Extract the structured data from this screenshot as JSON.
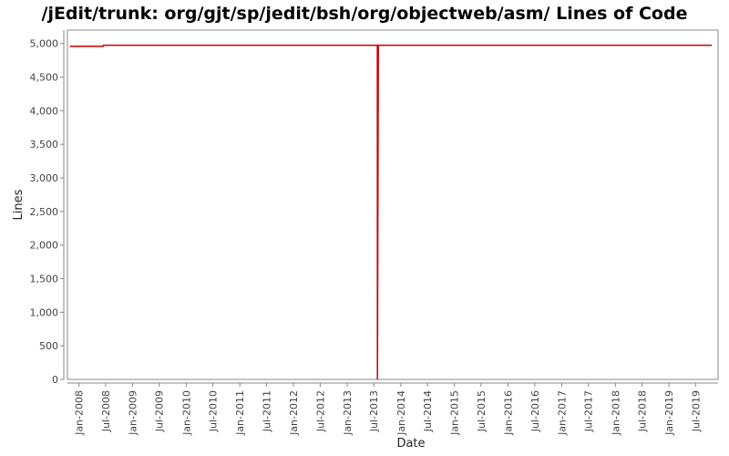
{
  "chart_data": {
    "type": "line",
    "title": "/jEdit/trunk: org/gjt/sp/jedit/bsh/org/objectweb/asm/ Lines of Code",
    "xlabel": "Date",
    "ylabel": "Lines",
    "ylim": [
      0,
      5200
    ],
    "xlim": [
      "2007-10-15",
      "2019-12-01"
    ],
    "yticks": [
      0,
      500,
      1000,
      1500,
      2000,
      2500,
      3000,
      3500,
      4000,
      4500,
      5000
    ],
    "ytick_labels": [
      "0",
      "500",
      "1,000",
      "1,500",
      "2,000",
      "2,500",
      "3,000",
      "3,500",
      "4,000",
      "4,500",
      "5,000"
    ],
    "xticks": [
      "2008-01-01",
      "2008-07-01",
      "2009-01-01",
      "2009-07-01",
      "2010-01-01",
      "2010-07-01",
      "2011-01-01",
      "2011-07-01",
      "2012-01-01",
      "2012-07-01",
      "2013-01-01",
      "2013-07-01",
      "2014-01-01",
      "2014-07-01",
      "2015-01-01",
      "2015-07-01",
      "2016-01-01",
      "2016-07-01",
      "2017-01-01",
      "2017-07-01",
      "2018-01-01",
      "2018-07-01",
      "2019-01-01",
      "2019-07-01"
    ],
    "xtick_labels": [
      "Jan-2008",
      "Jul-2008",
      "Jan-2009",
      "Jul-2009",
      "Jan-2010",
      "Jul-2010",
      "Jan-2011",
      "Jul-2011",
      "Jan-2012",
      "Jul-2012",
      "Jan-2013",
      "Jul-2013",
      "Jan-2014",
      "Jul-2014",
      "Jan-2015",
      "Jul-2015",
      "Jan-2016",
      "Jul-2016",
      "Jan-2017",
      "Jul-2017",
      "Jan-2018",
      "Jul-2018",
      "Jan-2019",
      "Jul-2019"
    ],
    "grid": false,
    "series": [
      {
        "color": "#cc0000",
        "points": [
          [
            "2007-11-01",
            4960
          ],
          [
            "2008-06-15",
            4960
          ],
          [
            "2008-06-16",
            4975
          ],
          [
            "2013-07-25",
            4975
          ],
          [
            "2013-07-26",
            0
          ],
          [
            "2013-08-01",
            4975
          ],
          [
            "2019-10-20",
            4975
          ]
        ]
      }
    ]
  }
}
